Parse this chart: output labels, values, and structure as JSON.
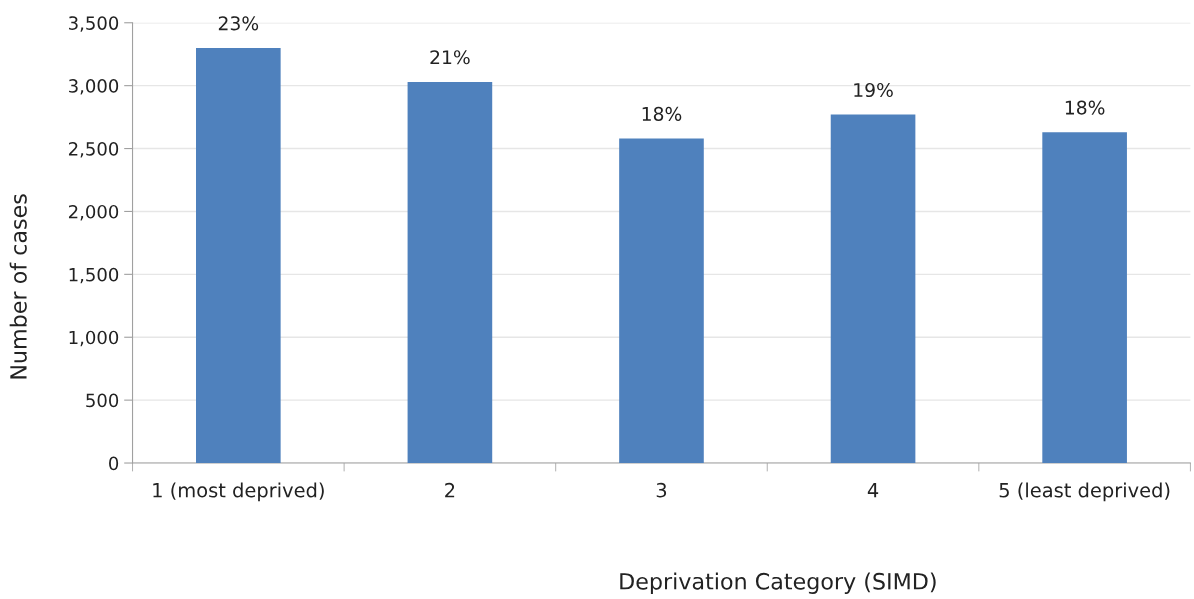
{
  "chart_data": {
    "type": "bar",
    "xlabel": "Deprivation Category (SIMD)",
    "ylabel": "Number of cases",
    "categories": [
      "1 (most deprived)",
      "2",
      "3",
      "4",
      "5 (least deprived)"
    ],
    "values": [
      3300,
      3030,
      2580,
      2770,
      2630
    ],
    "annotations": [
      {
        "text": "23%",
        "x": "1 (most deprived)",
        "y": 3300
      },
      {
        "text": "21%",
        "x": "2",
        "y": 3030
      },
      {
        "text": "18%",
        "x": "3",
        "y": 2580
      },
      {
        "text": "19%",
        "x": "4",
        "y": 2770
      },
      {
        "text": "18%",
        "x": "5 (least deprived)",
        "y": 2630
      }
    ],
    "color": "#4f81bd",
    "ylim": [
      0,
      3500
    ],
    "yticks": [
      {
        "value": 0,
        "label": "0"
      },
      {
        "value": 500,
        "label": "500"
      },
      {
        "value": 1000,
        "label": "1,000"
      },
      {
        "value": 1500,
        "label": "1,500"
      },
      {
        "value": 2000,
        "label": "2,000"
      },
      {
        "value": 2500,
        "label": "2,500"
      },
      {
        "value": 3000,
        "label": "3,000"
      },
      {
        "value": 3500,
        "label": "3,500"
      }
    ],
    "grid": "y"
  }
}
